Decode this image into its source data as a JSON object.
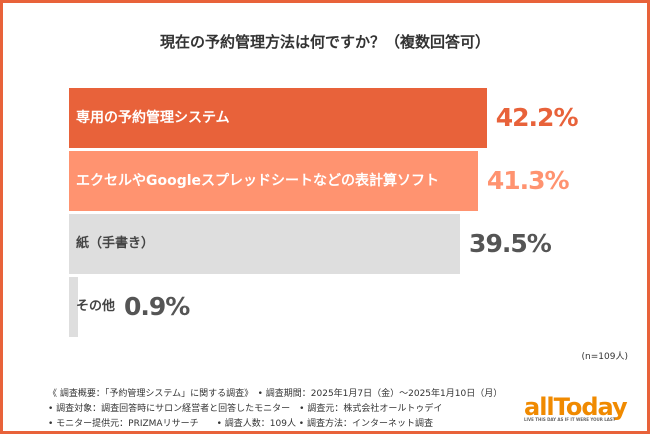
{
  "chart_data": {
    "type": "bar",
    "orientation": "horizontal",
    "title": "現在の予約管理方法は何ですか？（複数回答可）",
    "categories": [
      "専用の予約管理システム",
      "エクセルやGoogleスプレッドシートなどの表計算ソフト",
      "紙（手書き）",
      "その他"
    ],
    "values": [
      42.2,
      41.3,
      39.5,
      0.9
    ],
    "value_labels": [
      "42.2%",
      "41.3%",
      "39.5%",
      "0.9%"
    ],
    "colors": [
      "#e8623a",
      "#ff9370",
      "#dedede",
      "#dedede"
    ],
    "label_colors": [
      "#ffffff",
      "#ffffff",
      "#444444",
      "#444444"
    ],
    "value_colors": [
      "#e8623a",
      "#ff9370",
      "#555555",
      "#555555"
    ],
    "grid": false
  },
  "sample_note": "(n=109人)",
  "notes": [
    "《 調査概要：「予約管理システム」に関する調査》　• 調査期間：2025年1月7日（金）〜2025年1月10日（月）",
    "• 調査対象：調査回答時にサロン経営者と回答したモニター　• 調査元：株式会社オールトゥデイ",
    "• モニター提供元：PRIZMAリサーチ　　• 調査人数：109人 • 調査方法：インターネット調査"
  ],
  "logo": {
    "text": "allToday",
    "tagline": "LIVE THIS DAY AS IF IT WERE YOUR LAST",
    "color": "#f08a00"
  },
  "accent": "#e8623a"
}
